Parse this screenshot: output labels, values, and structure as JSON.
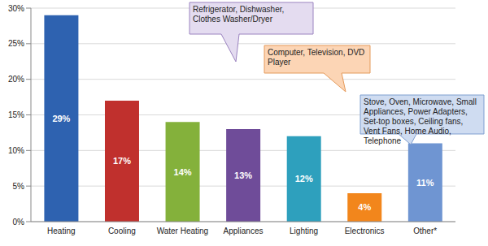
{
  "chart_data": {
    "type": "bar",
    "categories": [
      "Heating",
      "Cooling",
      "Water Heating",
      "Appliances",
      "Lighting",
      "Electronics",
      "Other*"
    ],
    "values": [
      29,
      17,
      14,
      13,
      12,
      4,
      11
    ],
    "value_labels": [
      "29%",
      "17%",
      "14%",
      "13%",
      "12%",
      "4%",
      "11%"
    ],
    "colors": [
      "#2e62b0",
      "#c0302d",
      "#84b13b",
      "#6f4c99",
      "#2ea0bd",
      "#f2861c",
      "#6f95d2"
    ],
    "ylim": [
      0,
      30
    ],
    "yticks": [
      {
        "value": 0,
        "label": "0%"
      },
      {
        "value": 5,
        "label": "5%"
      },
      {
        "value": 10,
        "label": "10%"
      },
      {
        "value": 15,
        "label": "15%"
      },
      {
        "value": 20,
        "label": "20%"
      },
      {
        "value": 25,
        "label": "25%"
      },
      {
        "value": 30,
        "label": "30%"
      }
    ],
    "grid": true,
    "data_labels": true,
    "annotations": [
      "Refrigerator, Dishwasher, Clothes Washer/Dryer",
      "Computer, Television, DVD Player",
      "Stove, Oven, Microwave, Small Appliances, Power Adapters, Set-top boxes, Ceiling fans, Vent Fans, Home Audio, Telephone"
    ]
  }
}
